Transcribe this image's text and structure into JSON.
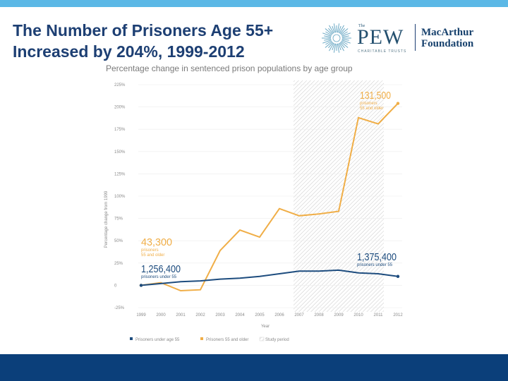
{
  "slide": {
    "title_line1": "The Number of Prisoners Age 55+",
    "title_line2": "Increased by 204%, 1999-2012"
  },
  "logos": {
    "pew_the": "The",
    "pew_word": "PEW",
    "pew_sub": "CHARITABLE TRUSTS",
    "macarthur_line1": "MacArthur",
    "macarthur_line2": "Foundation"
  },
  "colors": {
    "accent_top": "#5bb8e6",
    "footer": "#0b3f7a",
    "title": "#1d3f73",
    "older_series": "#f0ae47",
    "under_series": "#1d4c7e"
  },
  "chart_data": {
    "type": "line",
    "title": "Percentage change in sentenced prison populations by age group",
    "xlabel": "Year",
    "ylabel": "Percentage change from 1999",
    "categories": [
      "1999",
      "2000",
      "2001",
      "2002",
      "2003",
      "2004",
      "2005",
      "2006",
      "2007",
      "2008",
      "2009",
      "2010",
      "2011",
      "2012"
    ],
    "y_ticks": [
      225,
      200,
      175,
      150,
      125,
      100,
      75,
      50,
      25,
      0,
      -25
    ],
    "y_tick_labels": [
      "225%",
      "200%",
      "175%",
      "150%",
      "125%",
      "100%",
      "75%",
      "50%",
      "25%",
      "0",
      "-25%"
    ],
    "ylim": [
      -25,
      225
    ],
    "shaded_region": {
      "from": "2007",
      "to": "2011",
      "label": "Study period"
    },
    "series": [
      {
        "name": "Prisoners under age 55",
        "color": "#1d4c7e",
        "values": [
          0,
          2,
          4,
          5,
          7,
          8,
          10,
          13,
          16,
          16,
          17,
          14,
          13,
          10
        ]
      },
      {
        "name": "Prisoners 55 and older",
        "color": "#f0ae47",
        "values": [
          0,
          3,
          -6,
          -5,
          39,
          62,
          54,
          86,
          78,
          80,
          83,
          188,
          181,
          204
        ]
      }
    ],
    "annotations": [
      {
        "series": 1,
        "year": "1999",
        "number": "43,300",
        "text": "prisoners 55 and older"
      },
      {
        "series": 0,
        "year": "1999",
        "number": "1,256,400",
        "text": "prisoners under 55"
      },
      {
        "series": 1,
        "year": "2012",
        "number": "131,500",
        "text": "prisoners 55 and older"
      },
      {
        "series": 0,
        "year": "2012",
        "number": "1,375,400",
        "text": "prisoners under 55"
      }
    ],
    "legend": [
      "Prisoners under age 55",
      "Prisoners 55 and older",
      "Study period"
    ]
  }
}
